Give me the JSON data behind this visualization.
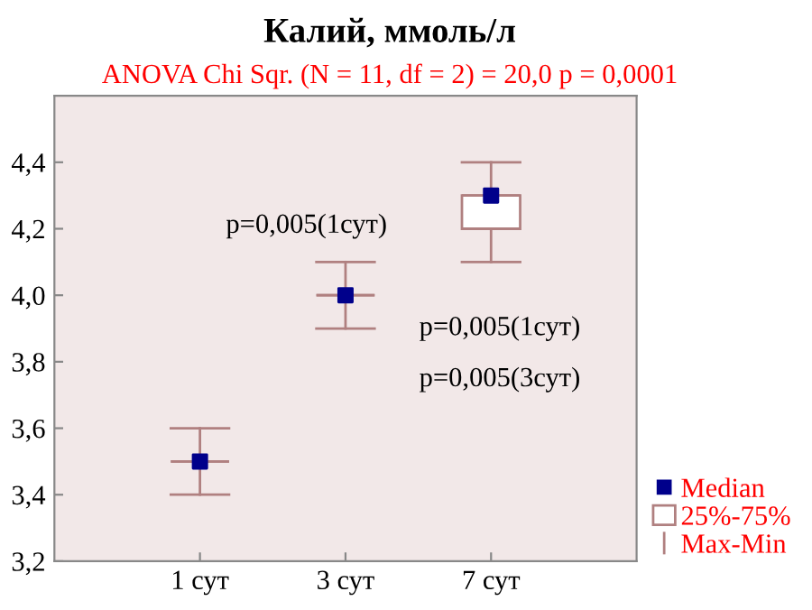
{
  "chart_data": {
    "type": "box",
    "title": "Калий, ммоль/л",
    "subtitle": "ANOVA Chi Sqr. (N = 11, df = 2) = 20,0 p = 0,0001",
    "categories": [
      "1 сут",
      "3 сут",
      "7 сут"
    ],
    "series": [
      {
        "name": "25%-75%",
        "color": "#b08080",
        "boxes": [
          {
            "low": 3.4,
            "q1": 3.5,
            "median": 3.5,
            "q3": 3.5,
            "high": 3.6
          },
          {
            "low": 3.9,
            "q1": 4.0,
            "median": 4.0,
            "q3": 4.0,
            "high": 4.1
          },
          {
            "low": 4.1,
            "q1": 4.2,
            "median": 4.3,
            "q3": 4.3,
            "high": 4.4
          }
        ]
      },
      {
        "type": "scatter",
        "name": "Median",
        "color": "#00008b",
        "values": [
          3.5,
          4.0,
          4.3
        ]
      }
    ],
    "annotations": [
      "p=0,005(1сут)",
      "p=0,005(1сут)",
      "p=0,005(3сут)",
      "Max-Min"
    ],
    "ylim": [
      3.2,
      4.6
    ],
    "yticks": [
      {
        "value": 3.2,
        "label": "3,2"
      },
      {
        "value": 3.4,
        "label": "3,4"
      },
      {
        "value": 3.6,
        "label": "3,6"
      },
      {
        "value": 3.8,
        "label": "3,8"
      },
      {
        "value": 4.0,
        "label": "4,0"
      },
      {
        "value": 4.2,
        "label": "4,2"
      },
      {
        "value": 4.4,
        "label": "4,4"
      }
    ],
    "grid": false,
    "legend": "right",
    "marker": "square"
  }
}
